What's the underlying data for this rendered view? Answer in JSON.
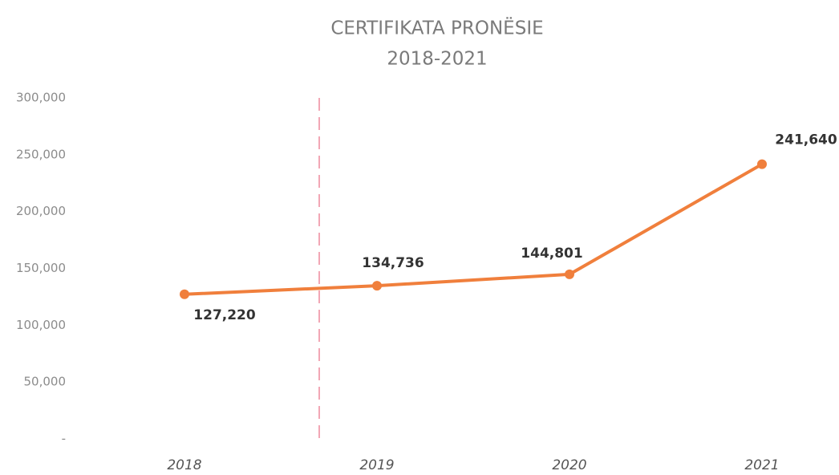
{
  "chart_data": {
    "type": "line",
    "title": "CERTIFIKATA PRONËSIE",
    "subtitle": "2018-2021",
    "categories": [
      "2018",
      "2019",
      "2020",
      "2021"
    ],
    "series": [
      {
        "name": null,
        "color": "#f07f3c",
        "values": [
          127220,
          134736,
          144801,
          241640
        ],
        "value_labels": [
          "127,220",
          "134,736",
          "144,801",
          "241,640"
        ]
      }
    ],
    "ylim": [
      0,
      300000
    ],
    "yticks": [
      {
        "value": 0,
        "label": "-"
      },
      {
        "value": 50000,
        "label": "50,000"
      },
      {
        "value": 100000,
        "label": "100,000"
      },
      {
        "value": 150000,
        "label": "150,000"
      },
      {
        "value": 200000,
        "label": "200,000"
      },
      {
        "value": 250000,
        "label": "250,000"
      },
      {
        "value": 300000,
        "label": "300,000"
      }
    ],
    "grid": false
  }
}
